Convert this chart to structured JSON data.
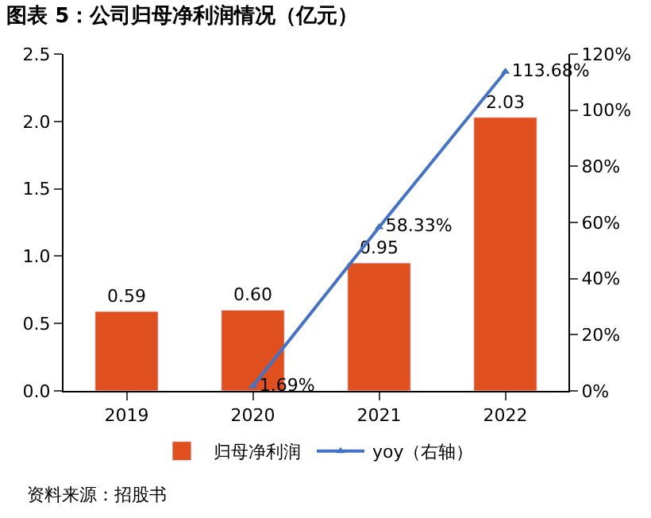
{
  "chart_data": {
    "type": "bar",
    "title": "图表 5：公司归母净利润情况（亿元）",
    "categories": [
      "2019",
      "2020",
      "2021",
      "2022"
    ],
    "series": [
      {
        "name": "归母净利润",
        "color": "#e0501f",
        "values": [
          0.59,
          0.6,
          0.95,
          2.03
        ],
        "value_labels": [
          "0.59",
          "0.60",
          "0.95",
          "2.03"
        ]
      },
      {
        "name": "yoy（右轴）",
        "type": "line",
        "axis": "y2",
        "color": "#4472c4",
        "marker": "triangle",
        "values": [
          null,
          1.69,
          58.33,
          113.68
        ],
        "value_labels": [
          null,
          "1.69%",
          "58.33%",
          "113.68%"
        ]
      }
    ],
    "ylim": [
      0,
      2.5
    ],
    "yticks": [
      "0.0",
      0.5,
      "1.0",
      1.5,
      "2.0",
      2.5
    ],
    "y2lim": [
      0,
      120
    ],
    "y2ticks": [
      {
        "value": 0,
        "label": "0%"
      },
      {
        "value": 20,
        "label": "20%"
      },
      {
        "value": 40,
        "label": "40%"
      },
      {
        "value": 60,
        "label": "60%"
      },
      {
        "value": 80,
        "label": "80%"
      },
      {
        "value": 100,
        "label": "100%"
      },
      {
        "value": 120,
        "label": "120%"
      }
    ],
    "legend": "bottom",
    "annotations": [
      "资料来源：招股书"
    ]
  }
}
